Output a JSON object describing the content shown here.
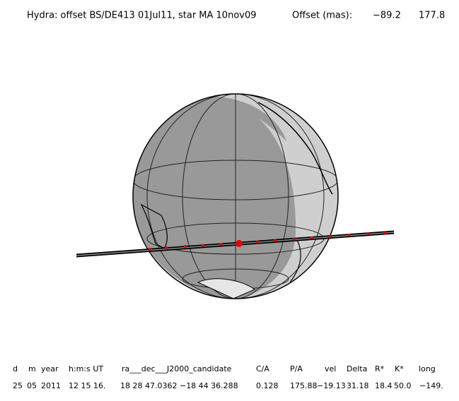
{
  "header": {
    "title": "Hydra: offset BS/DE413 01Jul11, star MA 10nov09",
    "offset_label": "Offset (mas):",
    "offset_ra": "−89.2",
    "offset_dec": "177.8"
  },
  "table": {
    "headers": [
      "d",
      "m",
      "year",
      "h:m:s UT",
      "ra___dec___J2000_candidate",
      "C/A",
      "P/A",
      "vel",
      "Delta",
      "R*",
      "K*",
      "long"
    ],
    "rows": [
      [
        "25",
        "05",
        "2011",
        "12 15 16.",
        "18 28 47.0362 −18 44  36.288",
        "0.128",
        "175.88",
        "−19.13",
        "31.18",
        "18.4",
        "50.0",
        "−149."
      ]
    ]
  }
}
